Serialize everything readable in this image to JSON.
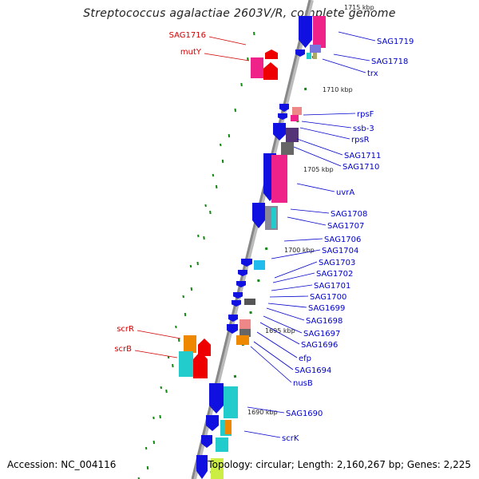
{
  "title": "Streptococcus agalactiae 2603V/R, complete genome",
  "accession": "Accession: NC_004116",
  "topology": "Topology: circular; Length: 2,160,267 bp; Genes: 2,225",
  "colors": {
    "forward_gene_label": "#0000cc",
    "reverse_gene_label": "#d00000",
    "cds_forward": "#1010e0",
    "cds_reverse": "#ee0000",
    "tick": "#118811",
    "backbone": "#888888"
  },
  "scale_labels": [
    "1715 kbp",
    "1710 kbp",
    "1705 kbp",
    "1700 kbp",
    "1695 kbp",
    "1690 kbp"
  ],
  "right_labels": [
    "SAG1719",
    "SAG1718",
    "trx",
    "rpsF",
    "ssb-3",
    "rpsR",
    "SAG1711",
    "SAG1710",
    "uvrA",
    "SAG1708",
    "SAG1707",
    "SAG1706",
    "SAG1704",
    "SAG1703",
    "SAG1702",
    "SAG1701",
    "SAG1700",
    "SAG1699",
    "SAG1698",
    "SAG1697",
    "SAG1696",
    "efp",
    "SAG1694",
    "nusB",
    "SAG1690",
    "scrK"
  ],
  "left_labels": [
    "SAG1716",
    "mutY",
    "scrR",
    "scrB"
  ]
}
